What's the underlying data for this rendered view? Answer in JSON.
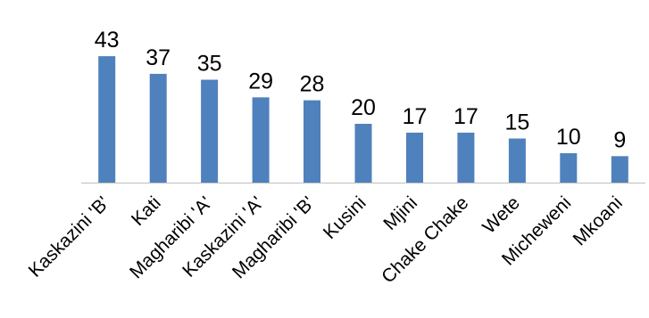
{
  "chart_data": {
    "type": "bar",
    "title": "",
    "xlabel": "",
    "ylabel": "",
    "categories": [
      "Kaskazini 'B'",
      "Kati",
      "Magharibi 'A'",
      "Kaskazini 'A'",
      "Magharibi 'B'",
      "Kusini",
      "Mjini",
      "Chake Chake",
      "Wete",
      "Micheweni",
      "Mkoani"
    ],
    "values": [
      43,
      37,
      35,
      29,
      28,
      20,
      17,
      17,
      15,
      10,
      9
    ],
    "data_labels": [
      "43",
      "37",
      "35",
      "29",
      "28",
      "20",
      "17",
      "17",
      "15",
      "10",
      "9"
    ],
    "ylim": [
      0,
      48
    ],
    "grid": false,
    "legend": "none",
    "bar_color": "#4F81BD",
    "axis_color": "#BFBFBF",
    "text_color": "#000000"
  }
}
